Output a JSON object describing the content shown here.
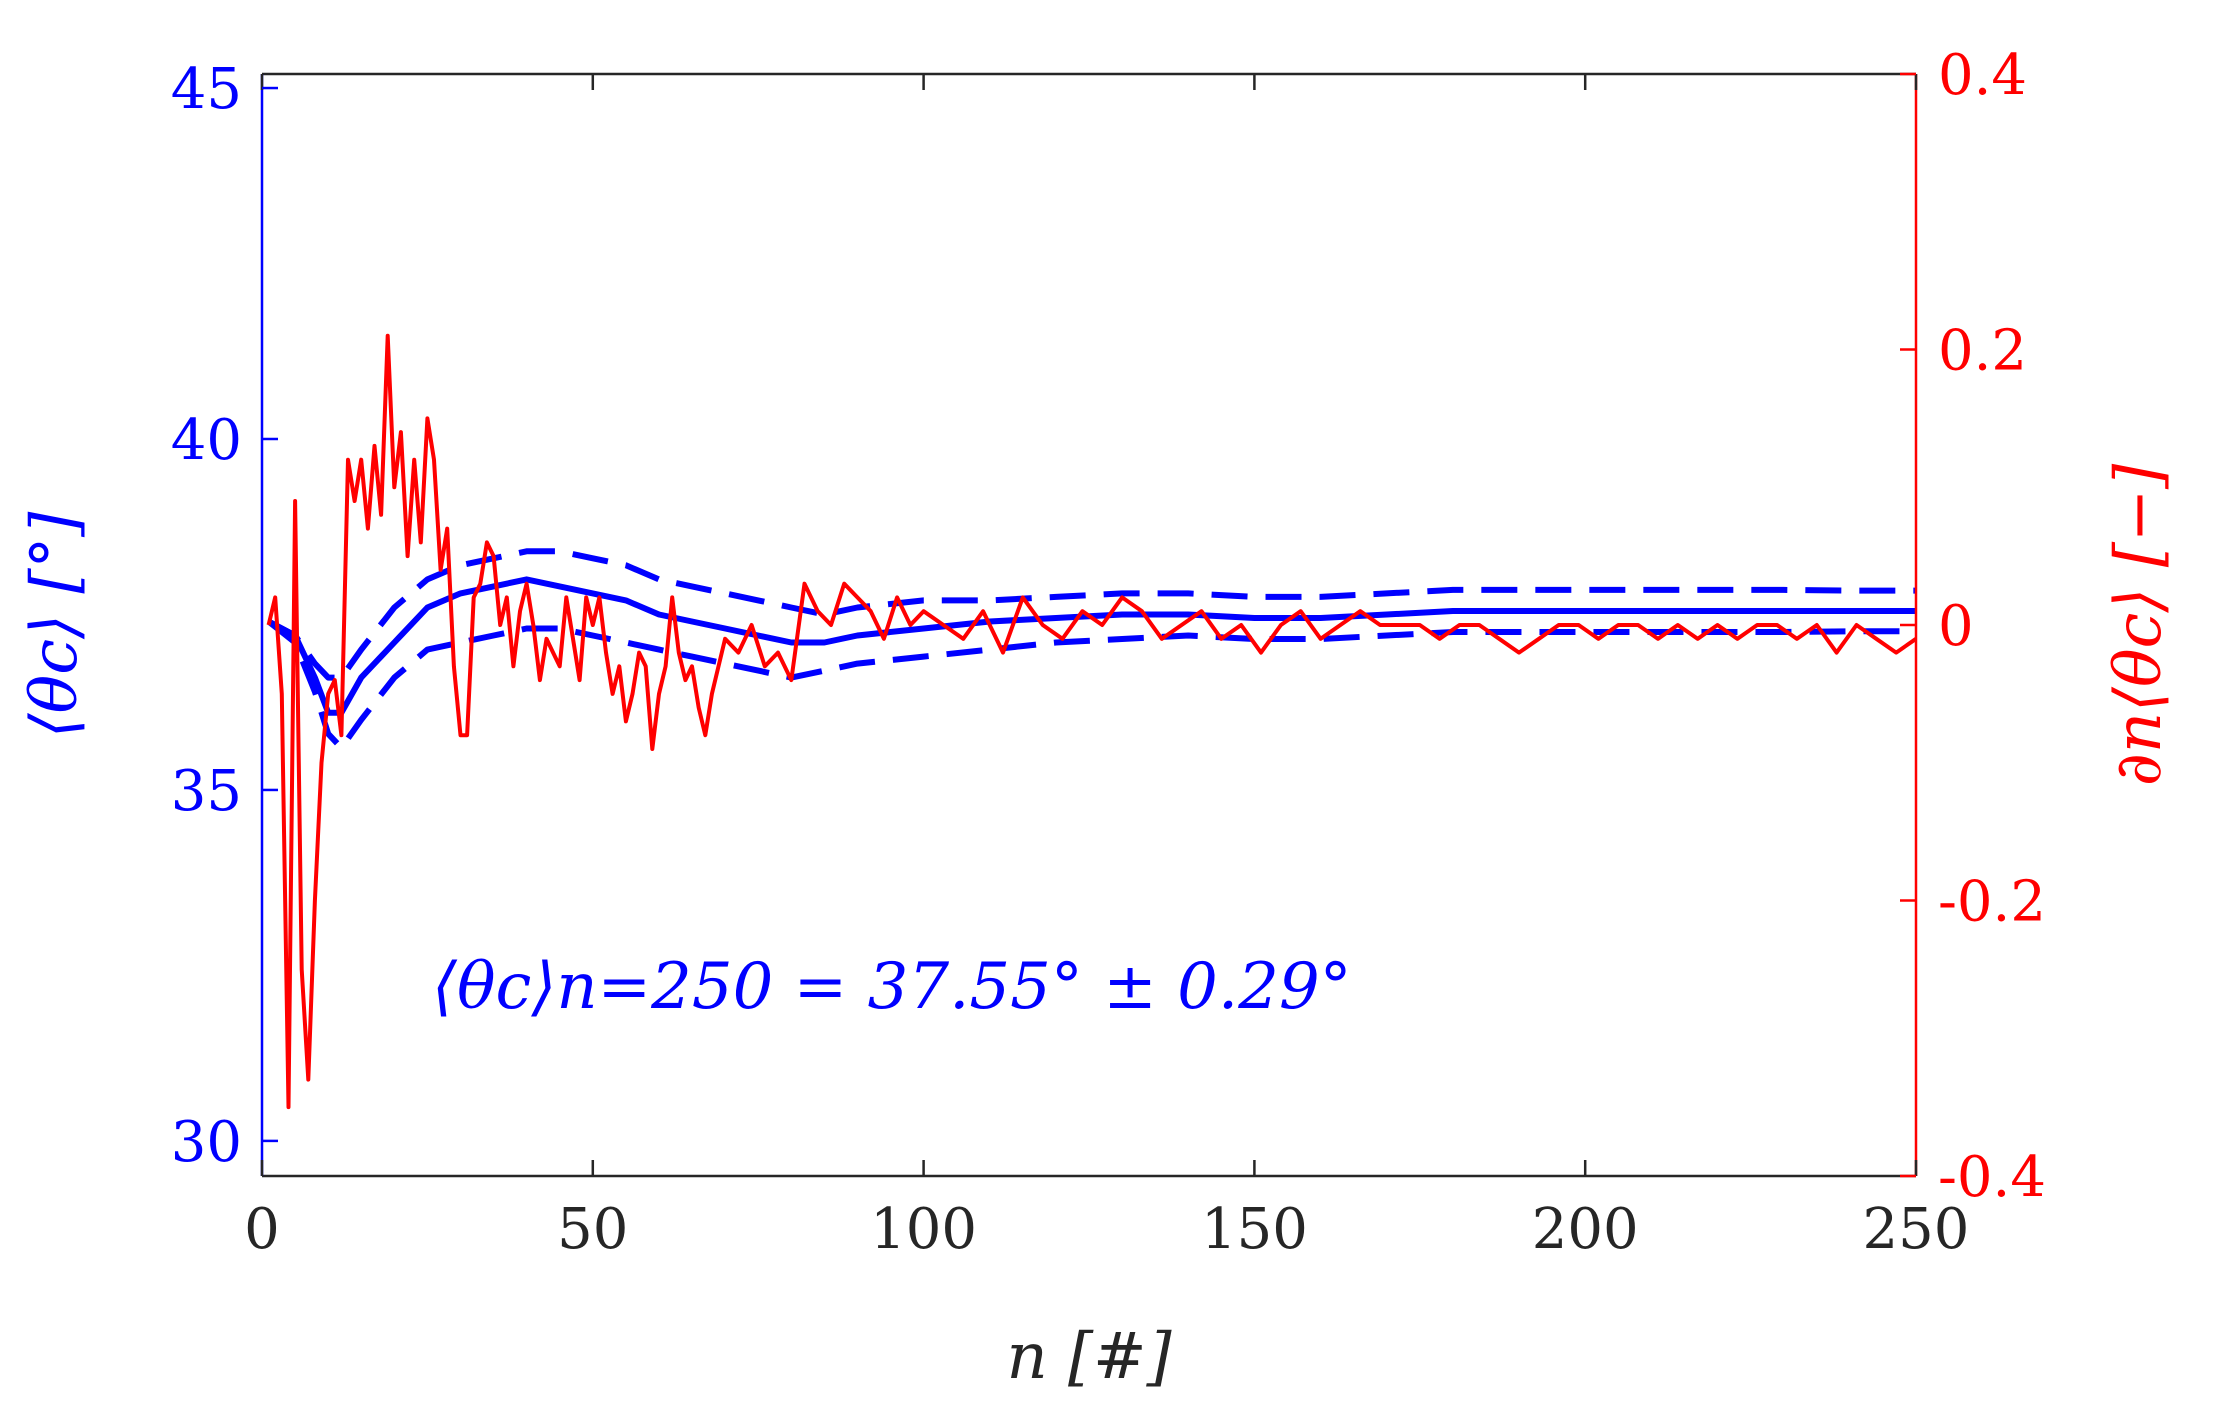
{
  "chart_data": {
    "type": "line",
    "x": {
      "label": "n [#]",
      "lim": [
        0,
        250
      ],
      "ticks": [
        0,
        50,
        100,
        150,
        200,
        250
      ],
      "tick_labels": [
        "0",
        "50",
        "100",
        "150",
        "200",
        "250"
      ]
    },
    "y_left": {
      "label": "⟨θc⟩ [°]",
      "lim": [
        29.5,
        45.2
      ],
      "ticks": [
        30,
        35,
        40,
        45
      ],
      "tick_labels": [
        "30",
        "35",
        "40",
        "45"
      ],
      "color": "#0000ff"
    },
    "y_right": {
      "label": "∂n⟨θc⟩ [−]",
      "lim": [
        -0.4,
        0.4
      ],
      "ticks": [
        -0.4,
        -0.2,
        0,
        0.2,
        0.4
      ],
      "tick_labels": [
        "-0.4",
        "-0.2",
        "0",
        "0.2",
        "0.4"
      ],
      "color": "#ff0000"
    },
    "annotation": "⟨θc⟩n=250 = 37.55° ± 0.29°",
    "series": [
      {
        "name": "mean",
        "axis": "left",
        "style": "solid",
        "color": "#0000ff",
        "x": [
          1,
          5,
          8,
          10,
          12,
          15,
          20,
          25,
          30,
          35,
          40,
          45,
          50,
          55,
          60,
          65,
          70,
          75,
          80,
          85,
          90,
          100,
          110,
          120,
          130,
          140,
          150,
          160,
          170,
          180,
          190,
          200,
          210,
          220,
          230,
          240,
          250
        ],
        "values": [
          37.4,
          37.2,
          36.6,
          36.1,
          36.1,
          36.6,
          37.1,
          37.6,
          37.8,
          37.9,
          38.0,
          37.9,
          37.8,
          37.7,
          37.5,
          37.4,
          37.3,
          37.2,
          37.1,
          37.1,
          37.2,
          37.3,
          37.4,
          37.45,
          37.5,
          37.5,
          37.45,
          37.45,
          37.5,
          37.55,
          37.55,
          37.55,
          37.55,
          37.55,
          37.55,
          37.55,
          37.55
        ]
      },
      {
        "name": "upper bound",
        "axis": "left",
        "style": "dashed",
        "color": "#0000ff",
        "x": [
          1,
          5,
          8,
          10,
          12,
          15,
          20,
          25,
          30,
          35,
          40,
          45,
          50,
          55,
          60,
          65,
          70,
          75,
          80,
          85,
          90,
          100,
          110,
          120,
          130,
          140,
          150,
          160,
          170,
          180,
          190,
          200,
          210,
          220,
          230,
          240,
          250
        ],
        "values": [
          37.4,
          37.2,
          36.8,
          36.6,
          36.6,
          37.0,
          37.6,
          38.0,
          38.2,
          38.3,
          38.4,
          38.4,
          38.3,
          38.2,
          38.0,
          37.9,
          37.8,
          37.7,
          37.6,
          37.5,
          37.6,
          37.7,
          37.7,
          37.75,
          37.8,
          37.8,
          37.75,
          37.75,
          37.8,
          37.85,
          37.85,
          37.85,
          37.85,
          37.85,
          37.85,
          37.84,
          37.84
        ]
      },
      {
        "name": "lower bound",
        "axis": "left",
        "style": "dashed",
        "color": "#0000ff",
        "x": [
          1,
          5,
          8,
          10,
          12,
          15,
          20,
          25,
          30,
          35,
          40,
          45,
          50,
          55,
          60,
          65,
          70,
          75,
          80,
          85,
          90,
          100,
          110,
          120,
          130,
          140,
          150,
          160,
          170,
          180,
          190,
          200,
          210,
          220,
          230,
          240,
          250
        ],
        "values": [
          37.4,
          37.1,
          36.4,
          35.8,
          35.6,
          36.0,
          36.6,
          37.0,
          37.1,
          37.2,
          37.3,
          37.3,
          37.2,
          37.1,
          37.0,
          36.9,
          36.8,
          36.7,
          36.6,
          36.7,
          36.8,
          36.9,
          37.0,
          37.1,
          37.15,
          37.2,
          37.15,
          37.15,
          37.2,
          37.25,
          37.25,
          37.25,
          37.25,
          37.25,
          37.25,
          37.26,
          37.26
        ]
      },
      {
        "name": "derivative",
        "axis": "right",
        "style": "solid",
        "color": "#ff0000",
        "x": [
          1,
          2,
          3,
          4,
          5,
          6,
          7,
          8,
          9,
          10,
          11,
          12,
          13,
          14,
          15,
          16,
          17,
          18,
          19,
          20,
          21,
          22,
          23,
          24,
          25,
          26,
          27,
          28,
          29,
          30,
          31,
          32,
          33,
          34,
          35,
          36,
          37,
          38,
          39,
          40,
          41,
          42,
          43,
          44,
          45,
          46,
          47,
          48,
          49,
          50,
          51,
          52,
          53,
          54,
          55,
          56,
          57,
          58,
          59,
          60,
          61,
          62,
          63,
          64,
          65,
          66,
          67,
          68,
          69,
          70,
          72,
          74,
          76,
          78,
          80,
          82,
          84,
          86,
          88,
          90,
          92,
          94,
          96,
          98,
          100,
          103,
          106,
          109,
          112,
          115,
          118,
          121,
          124,
          127,
          130,
          133,
          136,
          139,
          142,
          145,
          148,
          151,
          154,
          157,
          160,
          163,
          166,
          169,
          172,
          175,
          178,
          181,
          184,
          187,
          190,
          193,
          196,
          199,
          202,
          205,
          208,
          211,
          214,
          217,
          220,
          223,
          226,
          229,
          232,
          235,
          238,
          241,
          244,
          247,
          250
        ],
        "values": [
          0.0,
          0.02,
          -0.05,
          -0.35,
          0.09,
          -0.25,
          -0.33,
          -0.2,
          -0.1,
          -0.05,
          -0.04,
          -0.08,
          0.12,
          0.09,
          0.12,
          0.07,
          0.13,
          0.08,
          0.21,
          0.1,
          0.14,
          0.05,
          0.12,
          0.06,
          0.15,
          0.12,
          0.04,
          0.07,
          -0.03,
          -0.08,
          -0.08,
          0.02,
          0.03,
          0.06,
          0.05,
          0.0,
          0.02,
          -0.03,
          0.01,
          0.03,
          0.0,
          -0.04,
          -0.01,
          -0.02,
          -0.03,
          0.02,
          -0.01,
          -0.04,
          0.02,
          0.0,
          0.02,
          -0.02,
          -0.05,
          -0.03,
          -0.07,
          -0.05,
          -0.02,
          -0.03,
          -0.09,
          -0.05,
          -0.03,
          0.02,
          -0.02,
          -0.04,
          -0.03,
          -0.06,
          -0.08,
          -0.05,
          -0.03,
          -0.01,
          -0.02,
          0.0,
          -0.03,
          -0.02,
          -0.04,
          0.03,
          0.01,
          0.0,
          0.03,
          0.02,
          0.01,
          -0.01,
          0.02,
          0.0,
          0.01,
          0.0,
          -0.01,
          0.01,
          -0.02,
          0.02,
          0.0,
          -0.01,
          0.01,
          0.0,
          0.02,
          0.01,
          -0.01,
          0.0,
          0.01,
          -0.01,
          0.0,
          -0.02,
          0.0,
          0.01,
          -0.01,
          0.0,
          0.01,
          0.0,
          0.0,
          0.0,
          -0.01,
          0.0,
          0.0,
          -0.01,
          -0.02,
          -0.01,
          0.0,
          0.0,
          -0.01,
          0.0,
          0.0,
          -0.01,
          0.0,
          -0.01,
          0.0,
          -0.01,
          0.0,
          0.0,
          -0.01,
          0.0,
          -0.02,
          0.0,
          -0.01,
          -0.02,
          -0.01
        ]
      }
    ]
  }
}
